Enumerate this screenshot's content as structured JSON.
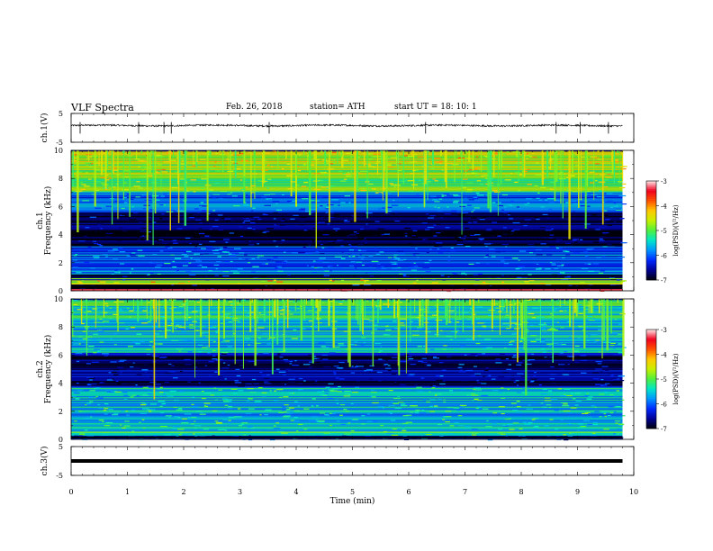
{
  "header": {
    "title": "VLF  Spectra",
    "date": "Feb. 26, 2018",
    "station": "station= ATH",
    "start_ut": "start  UT  =   18: 10: 1"
  },
  "colorbar": {
    "label": "log(PSD)(V²/Hz)",
    "ticks": [
      "-3",
      "-4",
      "-5",
      "-6",
      "-7"
    ],
    "range": [
      -7,
      -3
    ]
  },
  "chart_data": [
    {
      "type": "line",
      "panel": "ch.1 waveform",
      "ylabel": "ch.1(V)",
      "ylim": [
        -5,
        5
      ],
      "yticks": [
        "5",
        "-5"
      ],
      "xlim": [
        0,
        10
      ],
      "data_end_min": 9.8,
      "baseline_v": 0.8,
      "noise_amplitude_v": 0.3,
      "spike_times_min": [
        0.16,
        1.2,
        1.65,
        1.78,
        3.52,
        6.3,
        8.62,
        9.05,
        9.55
      ]
    },
    {
      "type": "heatmap",
      "panel": "ch.1 spectrogram",
      "ylabel_top": "ch.1",
      "ylabel": "Frequency  (kHz)",
      "ylim": [
        0,
        10
      ],
      "yticks": [
        "0",
        "2",
        "4",
        "6",
        "8",
        "10"
      ],
      "xlim": [
        0,
        10
      ],
      "data_end_min": 9.8,
      "value_units": "log(PSD)(V²/Hz)",
      "color_range": [
        -7,
        -3
      ],
      "bands_khz": [
        [
          0,
          0.1,
          -3.4
        ],
        [
          0.5,
          0.8,
          -4.6
        ],
        [
          1.2,
          2.6,
          -6.0
        ],
        [
          2.6,
          3.2,
          -6.2
        ],
        [
          3.2,
          5.6,
          -6.8
        ],
        [
          5.6,
          7.0,
          -6.0
        ],
        [
          7.0,
          10,
          -5.0
        ]
      ]
    },
    {
      "type": "heatmap",
      "panel": "ch.2 spectrogram",
      "ylabel_top": "ch.2",
      "ylabel": "Frequency  (kHz)",
      "ylim": [
        0,
        10
      ],
      "yticks": [
        "0",
        "2",
        "4",
        "6",
        "8",
        "10"
      ],
      "xlim": [
        0,
        10
      ],
      "data_end_min": 9.8,
      "value_units": "log(PSD)(V²/Hz)",
      "color_range": [
        -7,
        -3
      ],
      "bands_khz": [
        [
          0,
          0.3,
          -6.4
        ],
        [
          0.3,
          3.8,
          -5.6
        ],
        [
          3.8,
          6.2,
          -6.6
        ],
        [
          6.2,
          10,
          -5.6
        ]
      ]
    },
    {
      "type": "line",
      "panel": "ch.3 waveform",
      "ylabel": "ch.3(V)",
      "ylim": [
        -5,
        5
      ],
      "yticks": [
        "5",
        "-5"
      ],
      "xlim": [
        0,
        10
      ],
      "data_end_min": 9.8,
      "baseline_v": 0,
      "xlabel": "Time  (min)",
      "xticks": [
        "0",
        "1",
        "2",
        "3",
        "4",
        "5",
        "6",
        "7",
        "8",
        "9",
        "10"
      ]
    }
  ]
}
